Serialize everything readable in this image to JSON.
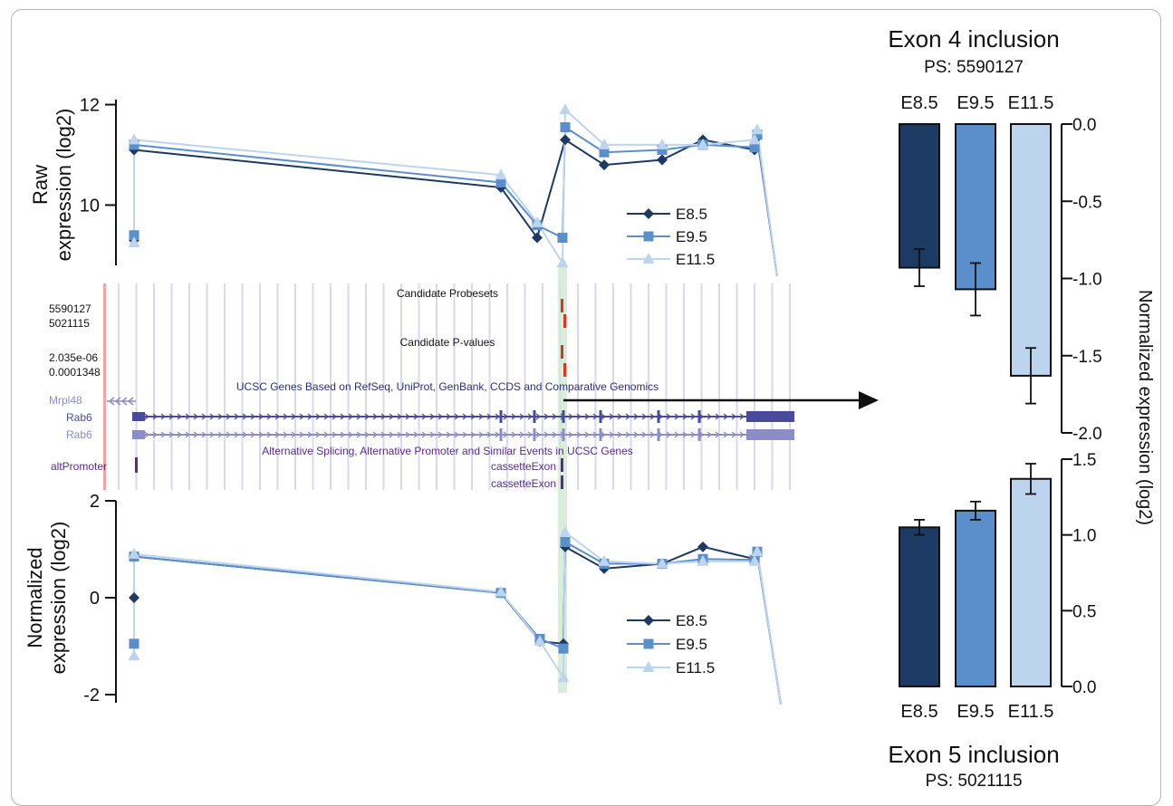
{
  "colors": {
    "e85": "#1c3a64",
    "e95": "#5b8fcc",
    "e115": "#bdd4ee",
    "gene": "#4a4a9c",
    "gene_light": "#8c8cc6",
    "alt": "#5a2a8c",
    "highlight": "#cfe8d4",
    "probe_tick": "#e0321c",
    "pink": "#f4a3a3",
    "grid": "#d8d8ee"
  },
  "browser": {
    "candidate_probesets_title": "Candidate Probesets",
    "probeset_1": "5590127",
    "probeset_2": "5021115",
    "candidate_pvalues_title": "Candidate P-values",
    "pvalue_1": "2.035e-06",
    "pvalue_2": "0.0001348",
    "ucsc_title": "UCSC Genes Based on RefSeq, UniProt, GenBank, CCDS and Comparative Genomics",
    "gene_mrpl48": "Mrpl48",
    "gene_rab6_1": "Rab6",
    "gene_rab6_2": "Rab6",
    "alt_title": "Alternative Splicing, Alternative Promoter and Similar Events in UCSC Genes",
    "alt_promoter": "altPromoter",
    "cassette_1": "cassetteExon",
    "cassette_2": "cassetteExon"
  },
  "chart_data": [
    {
      "id": "raw",
      "type": "line",
      "ylabel": "Raw expression (log2)",
      "ylim": [
        8.8,
        12.1
      ],
      "yticks": [
        "10",
        "12"
      ],
      "ytick_values": [
        10,
        12
      ],
      "x": [
        1,
        2,
        3,
        4,
        5,
        6,
        7,
        8,
        9,
        10,
        11,
        12,
        13
      ],
      "series": [
        {
          "name": "E8.5",
          "values": [
            9.3,
            11.1,
            10.35,
            9.35,
            null,
            11.3,
            10.8,
            10.9,
            11.3,
            11.1,
            11.35,
            8.3,
            null
          ]
        },
        {
          "name": "E9.5",
          "values": [
            9.4,
            11.2,
            10.45,
            9.6,
            9.35,
            11.55,
            11.05,
            11.1,
            11.2,
            11.15,
            11.4,
            8.3,
            null
          ]
        },
        {
          "name": "E11.5",
          "values": [
            9.25,
            11.3,
            10.6,
            9.65,
            8.85,
            11.9,
            11.2,
            11.2,
            11.2,
            11.3,
            11.5,
            8.3,
            null
          ]
        }
      ],
      "legend": [
        "E8.5",
        "E9.5",
        "E11.5"
      ]
    },
    {
      "id": "norm",
      "type": "line",
      "ylabel": "Normalized expression (log2)",
      "ylim": [
        -2.2,
        2.0
      ],
      "yticks": [
        "2",
        "0",
        "-2"
      ],
      "ytick_values": [
        2,
        0,
        -2
      ],
      "x": [
        1,
        2,
        3,
        4,
        5,
        6,
        7,
        8,
        9,
        10,
        11,
        12
      ],
      "series": [
        {
          "name": "E8.5",
          "values": [
            0.0,
            0.85,
            0.1,
            -0.9,
            -0.95,
            1.05,
            0.6,
            0.7,
            1.05,
            0.8,
            0.9,
            -2.2
          ]
        },
        {
          "name": "E9.5",
          "values": [
            -0.95,
            0.85,
            0.1,
            -0.85,
            -1.05,
            1.15,
            0.7,
            0.7,
            0.8,
            0.78,
            0.95,
            -2.2
          ]
        },
        {
          "name": "E11.5",
          "values": [
            -1.2,
            0.9,
            0.12,
            -0.9,
            -1.65,
            1.35,
            0.75,
            0.7,
            0.75,
            0.75,
            0.95,
            -2.2
          ]
        }
      ],
      "legend": [
        "E8.5",
        "E9.5",
        "E11.5"
      ]
    },
    {
      "id": "exon4",
      "type": "bar",
      "title": "Exon 4 inclusion",
      "subtitle": "PS: 5590127",
      "categories": [
        "E8.5",
        "E9.5",
        "E11.5"
      ],
      "values": [
        -0.93,
        -1.07,
        -1.63
      ],
      "errors": [
        0.12,
        0.17,
        0.18
      ],
      "ylim": [
        -2.0,
        0.0
      ],
      "yticks": [
        "0.0",
        "-0.5",
        "-1.0",
        "-1.5",
        "-2.0"
      ],
      "ytick_values": [
        0,
        -0.5,
        -1.0,
        -1.5,
        -2.0
      ],
      "ylabel": "Normalized expression (log2)"
    },
    {
      "id": "exon5",
      "type": "bar",
      "title": "Exon 5 inclusion",
      "subtitle": "PS: 5021115",
      "categories": [
        "E8.5",
        "E9.5",
        "E11.5"
      ],
      "values": [
        1.05,
        1.16,
        1.37
      ],
      "errors": [
        0.05,
        0.06,
        0.1
      ],
      "ylim": [
        0.0,
        1.5
      ],
      "yticks": [
        "1.5",
        "1.0",
        "0.5",
        "0.0"
      ],
      "ytick_values": [
        1.5,
        1.0,
        0.5,
        0.0
      ]
    }
  ]
}
